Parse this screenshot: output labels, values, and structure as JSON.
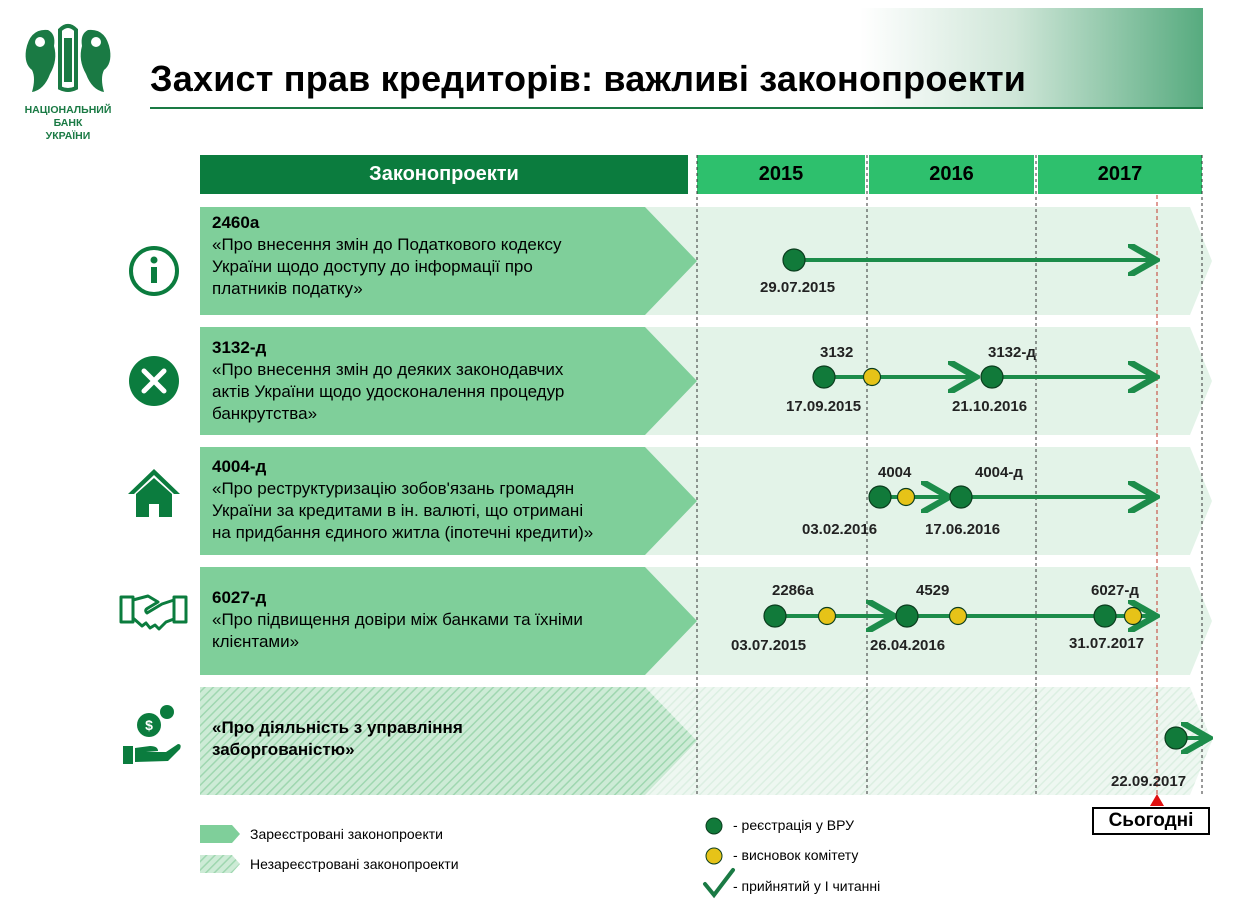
{
  "title": "Захист прав кредиторів: важливі законопроекти",
  "logo": {
    "bank_name_lines": [
      "НАЦІОНАЛЬНИЙ",
      "БАНК",
      "УКРАЇНИ"
    ]
  },
  "header": {
    "bills_label": "Законопроекти",
    "years": [
      "2015",
      "2016",
      "2017"
    ]
  },
  "rows": [
    {
      "icon": "info-icon",
      "code": "2460а",
      "text": "«Про внесення змін до Податкового кодексу України щодо доступу до інформації про платників податку»",
      "lines": [
        "«Про внесення змін до Податкового кодексу",
        "України щодо доступу до інформації про",
        "платників податку»"
      ],
      "events": [
        {
          "date": "29.07.2015"
        }
      ]
    },
    {
      "icon": "cross-icon",
      "code": "3132-д",
      "text": "«Про внесення змін до деяких законодавчих актів України щодо удосконалення процедур банкрутства»",
      "lines": [
        "«Про внесення змін до деяких законодавчих",
        "актів України щодо удосконалення процедур",
        "банкрутства»"
      ],
      "events": [
        {
          "label": "3132",
          "date": "17.09.2015"
        },
        {
          "label": "3132-д",
          "date": "21.10.2016"
        }
      ]
    },
    {
      "icon": "house-icon",
      "code": "4004-д",
      "text": "«Про реструктуризацію зобов'язань громадян України за кредитами в ін. валюті, що отримані на придбання єдиного житла (іпотечні кредити)»",
      "lines": [
        "«Про реструктуризацію зобов'язань громадян",
        "України за кредитами в ін. валюті, що отримані",
        "на придбання єдиного житла (іпотечні кредити)»"
      ],
      "events": [
        {
          "label": "4004",
          "date": "03.02.2016"
        },
        {
          "label": "4004-д",
          "date": "17.06.2016"
        }
      ]
    },
    {
      "icon": "handshake-icon",
      "code": "6027-д",
      "text": "«Про підвищення довіри між банками та їхніми клієнтами»",
      "lines": [
        "«Про підвищення довіри між банками та їхніми",
        "клієнтами»"
      ],
      "events": [
        {
          "label": "2286а",
          "date": "03.07.2015"
        },
        {
          "label": "4529",
          "date": "26.04.2016"
        },
        {
          "label": "6027-д",
          "date": "31.07.2017"
        }
      ]
    },
    {
      "icon": "money-hand-icon",
      "code": "",
      "text": "«Про діяльність з управління заборгованістю»",
      "lines": [
        "«Про діяльність з управління",
        "заборгованістю»"
      ],
      "events": [
        {
          "date": "22.09.2017"
        }
      ]
    }
  ],
  "today_label": "Сьогодні",
  "legend": {
    "registered": "Зареєстровані законопроекти",
    "unregistered": "Незареєстровані законопроекти",
    "registration": "-  реєстрація у ВРУ",
    "committee": "-  висновок комітету",
    "first_reading": "- прийнятий у І читанні"
  },
  "colors": {
    "dark_green": "#0b7c3e",
    "bright_green": "#2ec06d",
    "light_green": "#7fcf9a",
    "pale_green": "#e3f3e8",
    "arrow_green": "#1c8c4a",
    "dot_dark": "#117a3a",
    "dot_yellow": "#e6c318",
    "today_red": "#e01010"
  }
}
